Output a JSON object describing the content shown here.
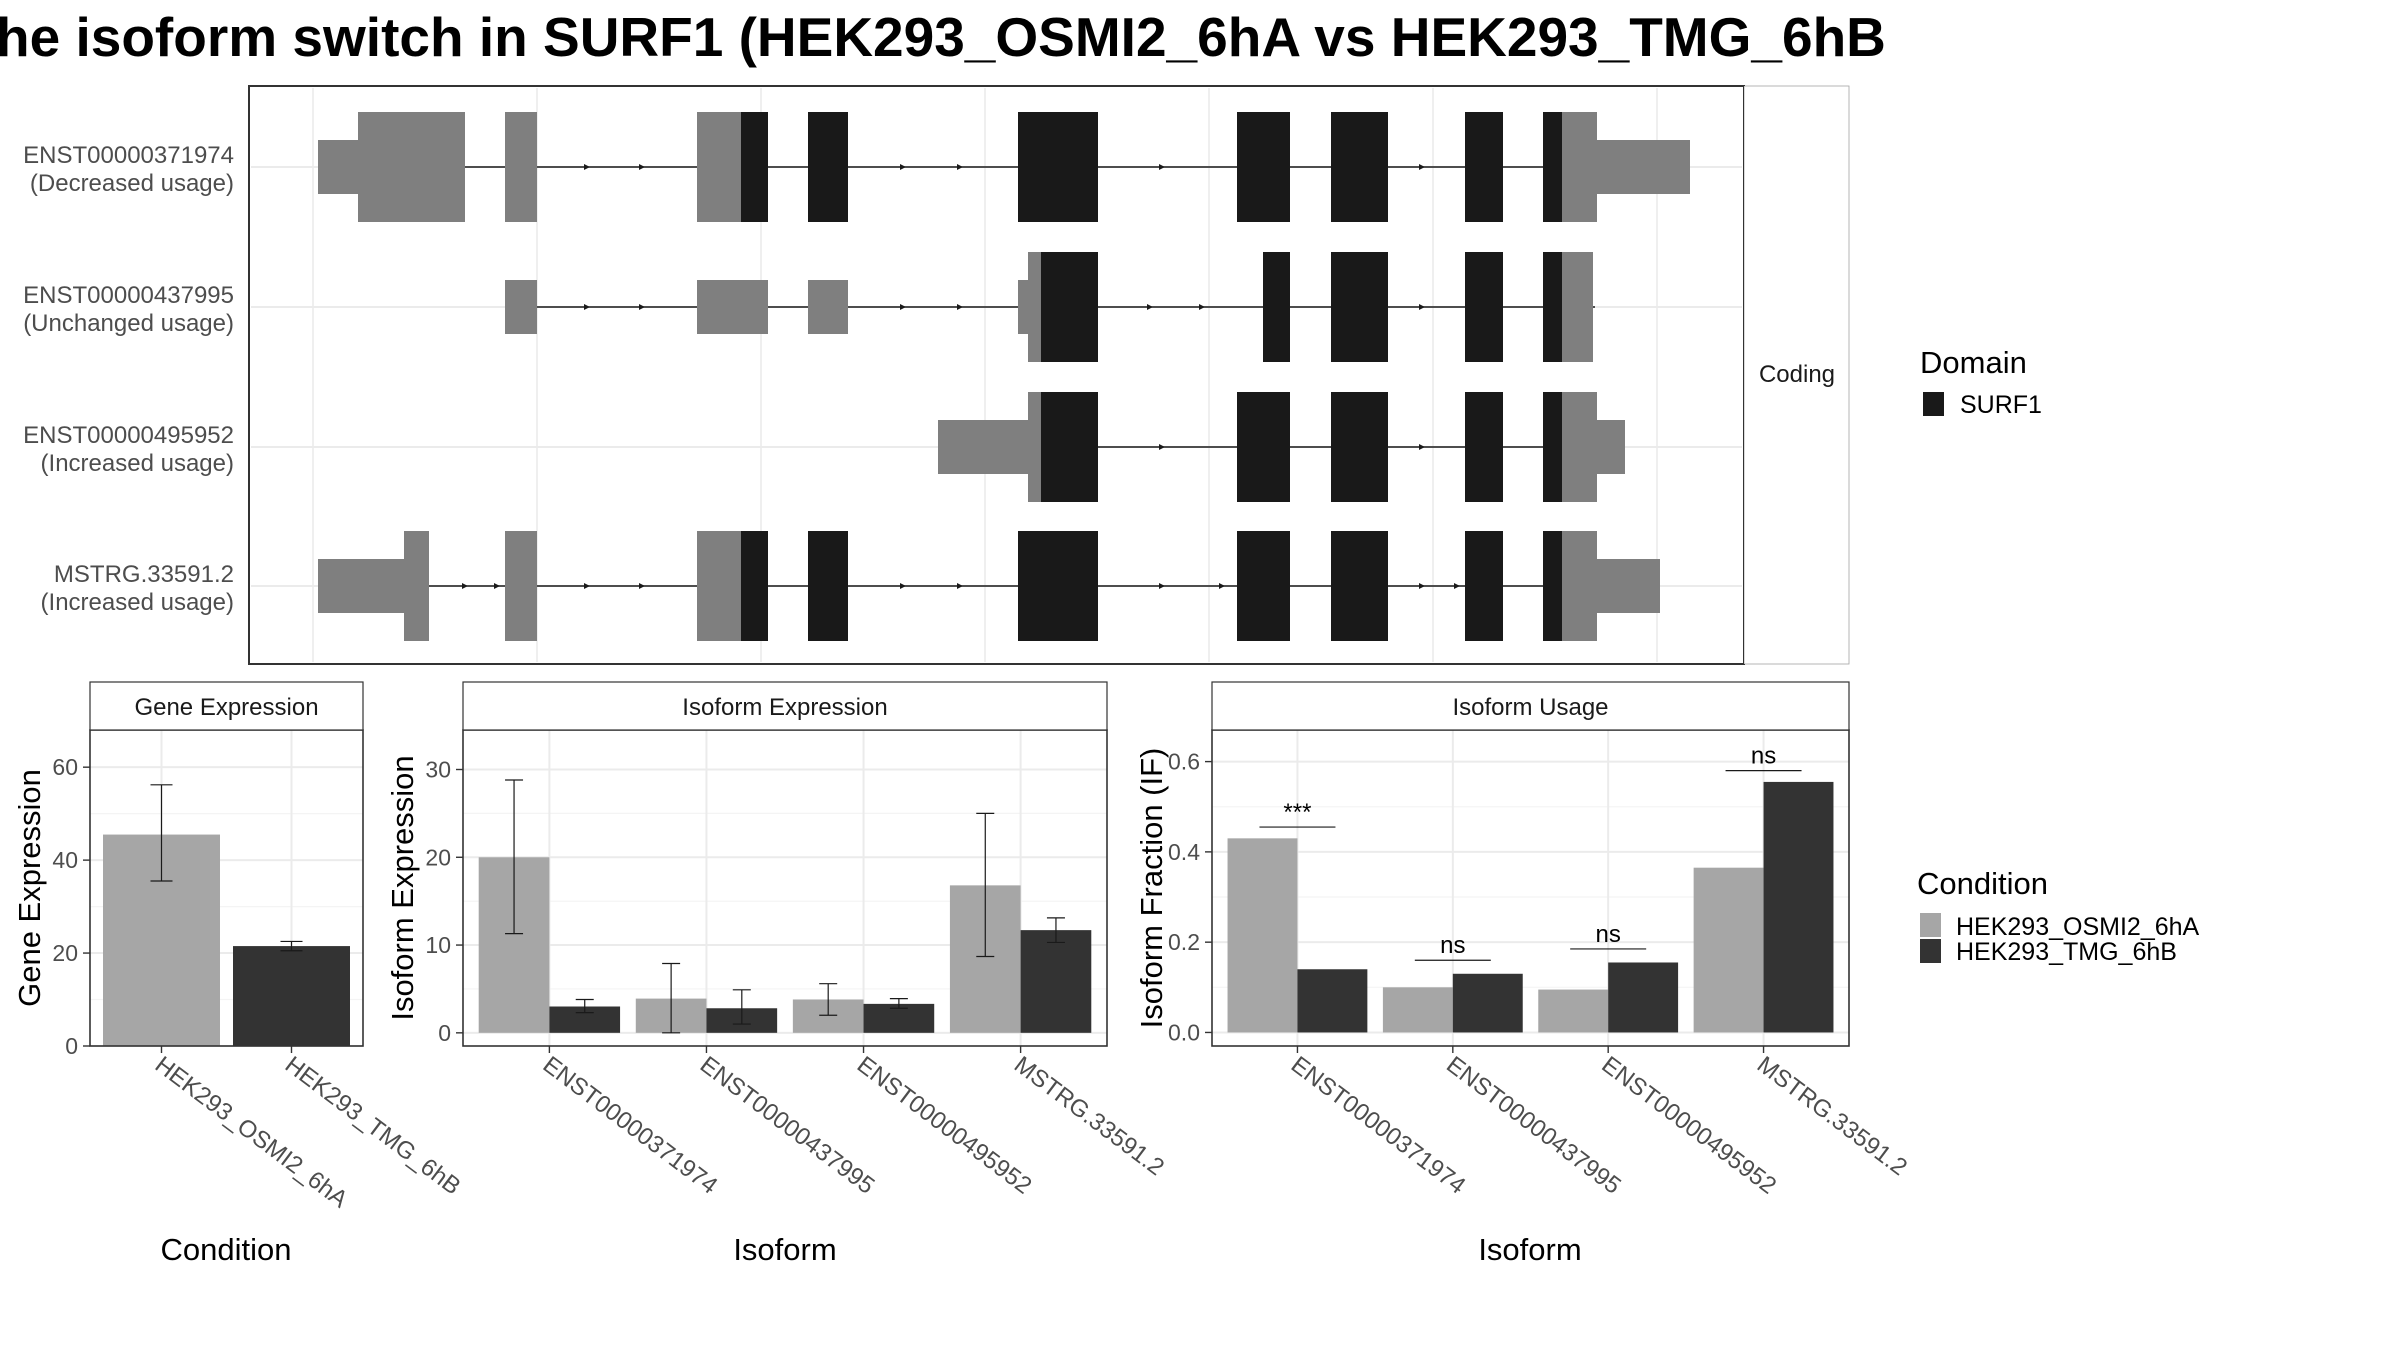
{
  "title": "he isoform switch in SURF1 (HEK293_OSMI2_6hA vs HEK293_TMG_6hB",
  "colors": {
    "domain": "#191919",
    "utr": "#7f7f7f",
    "condition_a": "#a6a6a6",
    "condition_b": "#333333",
    "panel_border": "#333333",
    "grid": "#ebebeb",
    "strip_fill": "#ffffff"
  },
  "legends": {
    "domain": {
      "title": "Domain",
      "items": [
        {
          "label": "SURF1",
          "color": "#191919"
        }
      ]
    },
    "condition": {
      "title": "Condition",
      "items": [
        {
          "label": "HEK293_OSMI2_6hA",
          "color": "#a6a6a6"
        },
        {
          "label": "HEK293_TMG_6hB",
          "color": "#333333"
        }
      ]
    }
  },
  "transcript_panel": {
    "strip_label": "Coding",
    "rows": [
      {
        "id": "ENST00000371974",
        "usage": "(Decreased usage)"
      },
      {
        "id": "ENST00000437995",
        "usage": "(Unchanged usage)"
      },
      {
        "id": "ENST00000495952",
        "usage": "(Increased usage)"
      },
      {
        "id": "MSTRG.33591.2",
        "usage": "(Increased usage)"
      }
    ]
  },
  "chart_data": [
    {
      "type": "bar",
      "title": "Gene Expression",
      "xlabel": "Condition",
      "ylabel": "Gene Expression",
      "ylim": [
        0,
        68
      ],
      "yticks": [
        0,
        20,
        40,
        60
      ],
      "categories": [
        "HEK293_OSMI2_6hA",
        "HEK293_TMG_6hB"
      ],
      "values": [
        45.5,
        21.5
      ],
      "error_low": [
        35.5,
        20.5
      ],
      "error_high": [
        56.2,
        22.5
      ],
      "colors": [
        "#a6a6a6",
        "#333333"
      ]
    },
    {
      "type": "bar",
      "title": "Isoform Expression",
      "xlabel": "Isoform",
      "ylabel": "Isoform Expression",
      "ylim": [
        -1.5,
        34.5
      ],
      "yticks": [
        0,
        10,
        20,
        30
      ],
      "categories": [
        "ENST00000371974",
        "ENST00000437995",
        "ENST00000495952",
        "MSTRG.33591.2"
      ],
      "series": [
        {
          "name": "HEK293_OSMI2_6hA",
          "values": [
            20.0,
            3.9,
            3.8,
            16.8
          ],
          "error_low": [
            11.3,
            0.0,
            2.0,
            8.7
          ],
          "error_high": [
            28.8,
            7.9,
            5.6,
            25.0
          ]
        },
        {
          "name": "HEK293_TMG_6hB",
          "values": [
            3.0,
            2.8,
            3.3,
            11.7
          ],
          "error_low": [
            2.3,
            1.0,
            2.8,
            10.3
          ],
          "error_high": [
            3.8,
            4.9,
            3.9,
            13.1
          ]
        }
      ]
    },
    {
      "type": "bar",
      "title": "Isoform Usage",
      "xlabel": "Isoform",
      "ylabel": "Isoform Fraction (IF)",
      "ylim": [
        -0.03,
        0.67
      ],
      "yticks": [
        0.0,
        0.2,
        0.4,
        0.6
      ],
      "categories": [
        "ENST00000371974",
        "ENST00000437995",
        "ENST00000495952",
        "MSTRG.33591.2"
      ],
      "series": [
        {
          "name": "HEK293_OSMI2_6hA",
          "values": [
            0.43,
            0.1,
            0.095,
            0.365
          ]
        },
        {
          "name": "HEK293_TMG_6hB",
          "values": [
            0.14,
            0.13,
            0.155,
            0.555
          ]
        }
      ],
      "significance": [
        {
          "category": "ENST00000371974",
          "label": "***",
          "y": 0.455
        },
        {
          "category": "ENST00000437995",
          "label": "ns",
          "y": 0.16
        },
        {
          "category": "ENST00000495952",
          "label": "ns",
          "y": 0.185
        },
        {
          "category": "MSTRG.33591.2",
          "label": "ns",
          "y": 0.58
        }
      ]
    }
  ]
}
